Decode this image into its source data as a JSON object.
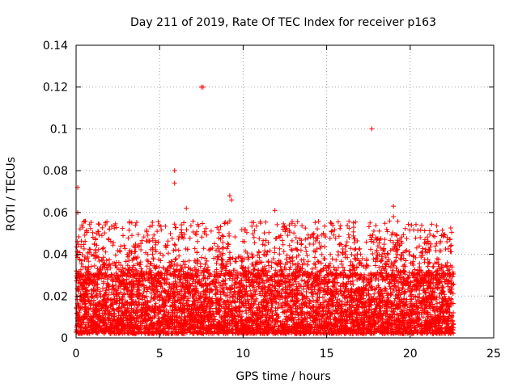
{
  "chart_data": {
    "type": "scatter",
    "title": "Day 211 of 2019, Rate Of TEC Index for receiver p163",
    "xlabel": "GPS time / hours",
    "ylabel": "ROTI / TECUs",
    "xlim": [
      0,
      25
    ],
    "ylim": [
      0,
      0.14
    ],
    "xticks": [
      0,
      5,
      10,
      15,
      20,
      25
    ],
    "yticks": [
      0,
      0.02,
      0.04,
      0.06,
      0.08,
      0.1,
      0.12,
      0.14
    ],
    "ytick_labels": [
      "0",
      "0.02",
      "0.04",
      "0.06",
      "0.08",
      "0.1",
      "0.12",
      "0.14"
    ],
    "grid": true,
    "marker": "+",
    "color": "#ff0000",
    "data_extent_hours": [
      0,
      22.6
    ],
    "bulk_range": [
      0.002,
      0.03
    ],
    "notable_points": [
      {
        "x": 0.1,
        "y": 0.072
      },
      {
        "x": 0.1,
        "y": 0.06
      },
      {
        "x": 0.35,
        "y": 0.054
      },
      {
        "x": 2.0,
        "y": 0.052
      },
      {
        "x": 3.2,
        "y": 0.055
      },
      {
        "x": 5.9,
        "y": 0.08
      },
      {
        "x": 5.9,
        "y": 0.074
      },
      {
        "x": 6.6,
        "y": 0.062
      },
      {
        "x": 7.5,
        "y": 0.12
      },
      {
        "x": 7.6,
        "y": 0.12
      },
      {
        "x": 9.2,
        "y": 0.068
      },
      {
        "x": 9.3,
        "y": 0.066
      },
      {
        "x": 9.2,
        "y": 0.056
      },
      {
        "x": 11.9,
        "y": 0.061
      },
      {
        "x": 12.4,
        "y": 0.053
      },
      {
        "x": 16.6,
        "y": 0.055
      },
      {
        "x": 17.7,
        "y": 0.1
      },
      {
        "x": 17.6,
        "y": 0.055
      },
      {
        "x": 19.0,
        "y": 0.063
      },
      {
        "x": 19.0,
        "y": 0.058
      },
      {
        "x": 20.6,
        "y": 0.048
      },
      {
        "x": 22.2,
        "y": 0.046
      }
    ]
  }
}
